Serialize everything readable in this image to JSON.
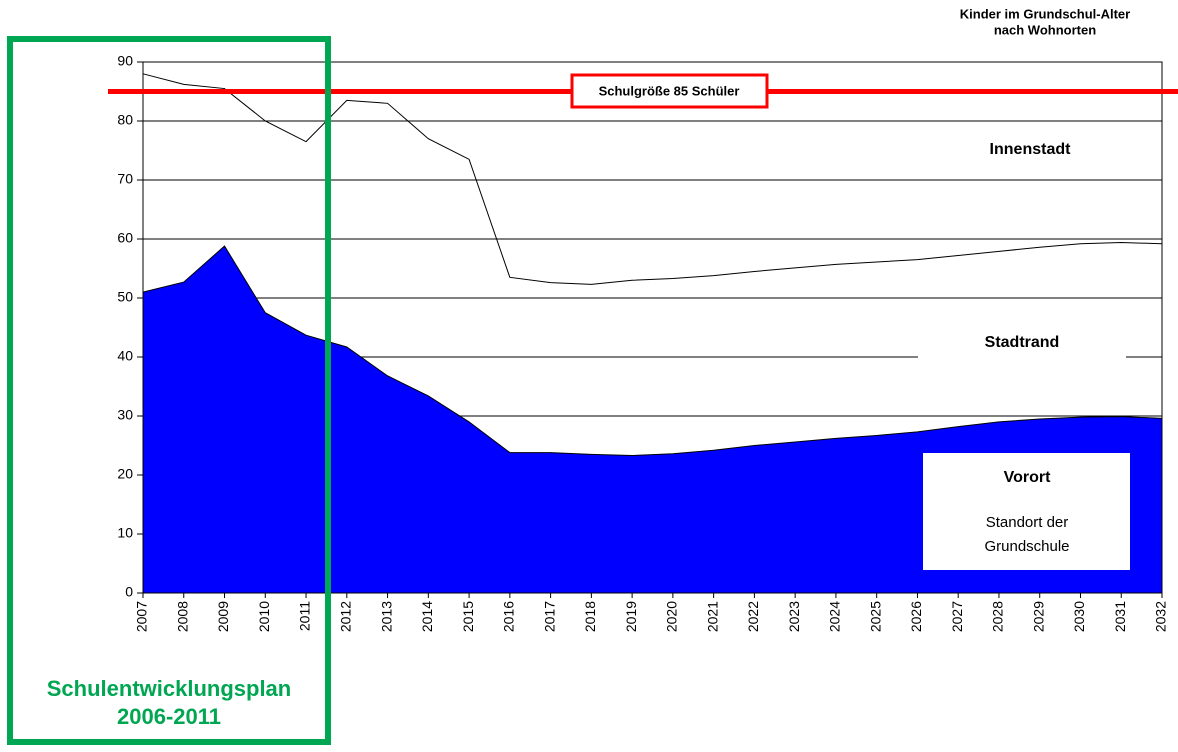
{
  "chart_data": {
    "type": "area",
    "title": [
      "Kinder im Grundschul-Alter",
      "nach Wohnorten"
    ],
    "categories": [
      "2007",
      "2008",
      "2009",
      "2010",
      "2011",
      "2012",
      "2013",
      "2014",
      "2015",
      "2016",
      "2017",
      "2018",
      "2019",
      "2020",
      "2021",
      "2022",
      "2023",
      "2024",
      "2025",
      "2026",
      "2027",
      "2028",
      "2029",
      "2030",
      "2031",
      "2032"
    ],
    "series": [
      {
        "kind": "area",
        "color": "#0000ff",
        "values": [
          51,
          52.7,
          58.8,
          47.5,
          43.7,
          41.7,
          36.8,
          33.4,
          29,
          23.8,
          23.8,
          23.5,
          23.3,
          23.6,
          24.2,
          25,
          25.6,
          26.2,
          26.7,
          27.3,
          28.2,
          29,
          29.5,
          29.8,
          29.9,
          29.6
        ]
      },
      {
        "kind": "line",
        "color": "#000000",
        "values": [
          88,
          86.2,
          85.5,
          80,
          76.5,
          83.5,
          83,
          77,
          73.5,
          53.5,
          52.6,
          52.3,
          53,
          53.3,
          53.8,
          54.5,
          55.1,
          55.7,
          56.1,
          56.5,
          57.2,
          57.9,
          58.6,
          59.2,
          59.4,
          59.2
        ]
      }
    ],
    "ylim": [
      0,
      90
    ],
    "yticks": [
      0,
      10,
      20,
      30,
      40,
      50,
      60,
      70,
      80,
      90
    ],
    "grid": true,
    "reference_line": {
      "value": 85,
      "label": "Schulgröße 85 Schüler",
      "color": "#ff0000"
    },
    "region_labels": {
      "top": "Innenstadt",
      "middle": "Stadtrand",
      "bottom": "Vorort",
      "bottom_note": [
        "Standort der",
        "Grundschule"
      ]
    },
    "highlight": {
      "label": [
        "Schulentwicklungsplan",
        "2006-2011"
      ],
      "color": "#00a651"
    }
  }
}
